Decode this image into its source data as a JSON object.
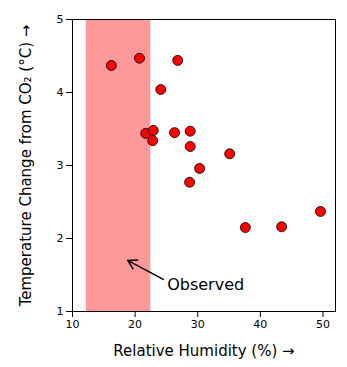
{
  "chart_data": {
    "type": "scatter",
    "x_label": "Relative Humidity (%)",
    "y_label": "Temperature Change from CO₂ (°C)",
    "x": [
      16.2,
      20.7,
      26.8,
      24.1,
      21.7,
      22.9,
      22.8,
      26.3,
      28.8,
      28.8,
      30.3,
      28.7,
      35.1,
      37.6,
      43.4,
      49.6
    ],
    "values": [
      4.37,
      4.47,
      4.44,
      4.04,
      3.44,
      3.48,
      3.34,
      3.45,
      3.47,
      3.26,
      2.96,
      2.77,
      3.16,
      2.15,
      2.16,
      2.37
    ],
    "color": "#ff0000",
    "marker": "circle",
    "xlim": [
      10,
      52
    ],
    "xticks": [
      10,
      20,
      30,
      40,
      50
    ],
    "ylim": [
      1,
      5
    ],
    "yticks": [
      1,
      2,
      3,
      4,
      5
    ],
    "grid": false,
    "annotations": [
      {
        "text": "Observed",
        "range": [
          12.2,
          22.5
        ]
      }
    ]
  }
}
